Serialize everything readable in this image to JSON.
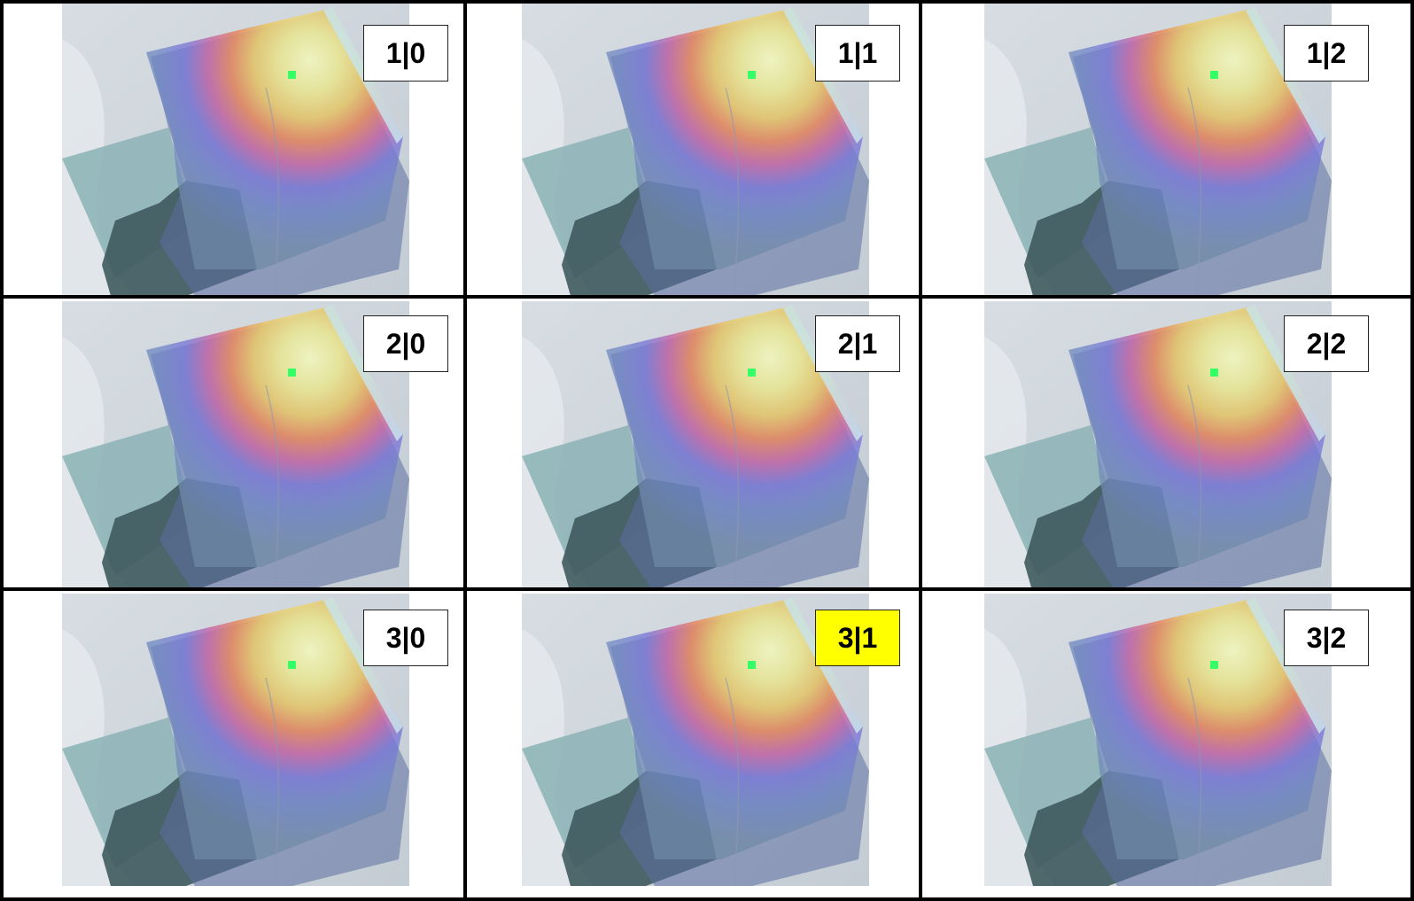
{
  "colors": {
    "background": "#ffffff",
    "grid_lines": "#000000",
    "highlight": "#ffff00",
    "hotspot_marker": "#33ff66"
  },
  "cells": [
    {
      "label": "1|0",
      "selected": false
    },
    {
      "label": "1|1",
      "selected": false
    },
    {
      "label": "1|2",
      "selected": false
    },
    {
      "label": "2|0",
      "selected": false
    },
    {
      "label": "2|1",
      "selected": false
    },
    {
      "label": "2|2",
      "selected": false
    },
    {
      "label": "3|0",
      "selected": false
    },
    {
      "label": "3|1",
      "selected": true
    },
    {
      "label": "3|2",
      "selected": false
    }
  ]
}
